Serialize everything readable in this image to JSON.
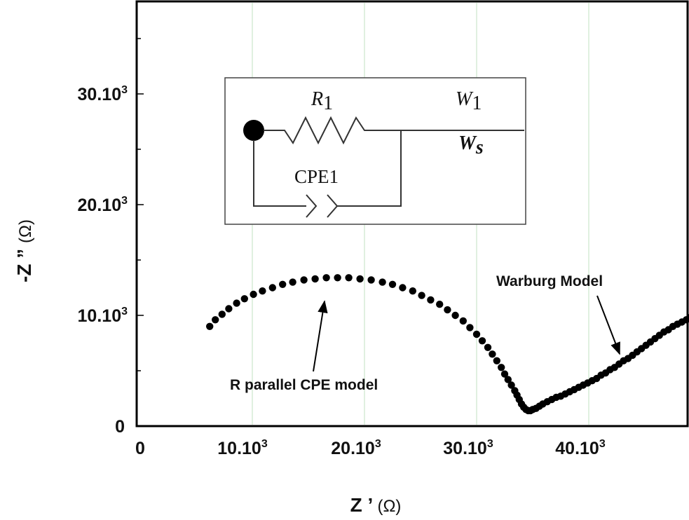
{
  "colors": {
    "axis": "#000000",
    "grid": "#d6ecd6",
    "points": "#000000"
  },
  "chart_data": {
    "type": "scatter",
    "xlabel": "Z ’",
    "xlabel_unit": "(Ω)",
    "ylabel": "-Z ”",
    "ylabel_unit": "(Ω)",
    "xlim": [
      0,
      49000
    ],
    "ylim": [
      0,
      38000
    ],
    "grid": "vertical",
    "x_ticks": [
      {
        "value": 0,
        "base": "0",
        "exp": ""
      },
      {
        "value": 10000,
        "base": "10.10",
        "exp": "3"
      },
      {
        "value": 20000,
        "base": "20.10",
        "exp": "3"
      },
      {
        "value": 30000,
        "base": "30.10",
        "exp": "3"
      },
      {
        "value": 40000,
        "base": "40.10",
        "exp": "3"
      }
    ],
    "y_ticks": [
      {
        "value": 0,
        "base": "0",
        "exp": ""
      },
      {
        "value": 10000,
        "base": "10.10",
        "exp": "3"
      },
      {
        "value": 20000,
        "base": "20.10",
        "exp": "3"
      },
      {
        "value": 30000,
        "base": "30.10",
        "exp": "3"
      }
    ],
    "series": [
      {
        "x": [
          6200,
          6700,
          7300,
          7900,
          8600,
          9300,
          10100,
          10900,
          11800,
          12700,
          13600,
          14600,
          15600,
          16600,
          17600,
          18600,
          19600,
          20600,
          21600,
          22500,
          23400,
          24300,
          25100,
          25900,
          26700,
          27400,
          28100,
          28800,
          29400,
          30000,
          30500,
          31000,
          31400,
          31800,
          32200,
          32500,
          32800,
          33100,
          33400,
          33600,
          33800,
          34000,
          34200,
          34400,
          34600,
          34800,
          35000,
          35300,
          35600,
          35900,
          36300,
          36700,
          37100,
          37500,
          37900,
          38300,
          38700,
          39100,
          39500,
          39900,
          40300,
          40700,
          41100,
          41500,
          41900,
          42300,
          42700,
          43100,
          43500,
          43900,
          44300,
          44700,
          45100,
          45500,
          45900,
          46300,
          46700,
          47100,
          47500,
          47900,
          48300,
          48700,
          49000
        ],
        "y": [
          9000,
          9600,
          10100,
          10600,
          11100,
          11500,
          11900,
          12200,
          12500,
          12800,
          13000,
          13200,
          13300,
          13400,
          13400,
          13400,
          13300,
          13200,
          13000,
          12800,
          12500,
          12200,
          11800,
          11400,
          11000,
          10500,
          10000,
          9500,
          8900,
          8300,
          7700,
          7100,
          6500,
          5900,
          5300,
          4700,
          4200,
          3700,
          3200,
          2800,
          2400,
          2000,
          1700,
          1500,
          1400,
          1400,
          1500,
          1600,
          1800,
          2000,
          2200,
          2400,
          2600,
          2700,
          2900,
          3100,
          3300,
          3500,
          3700,
          3900,
          4100,
          4300,
          4600,
          4800,
          5100,
          5300,
          5600,
          5900,
          6100,
          6400,
          6700,
          7000,
          7300,
          7600,
          7900,
          8200,
          8500,
          8700,
          9000,
          9200,
          9400,
          9600,
          9800
        ]
      }
    ],
    "annotations": [
      {
        "text": "R parallel CPE model",
        "target": [
          16500,
          11300
        ]
      },
      {
        "text": "Warburg Model",
        "target": [
          42000,
          6800
        ]
      }
    ]
  },
  "circuit": {
    "r1": "R",
    "r1_sub": "1",
    "w1": "W",
    "w1_sub": "1",
    "ws": "W",
    "ws_sub": "s",
    "cpe": "CPE1"
  }
}
